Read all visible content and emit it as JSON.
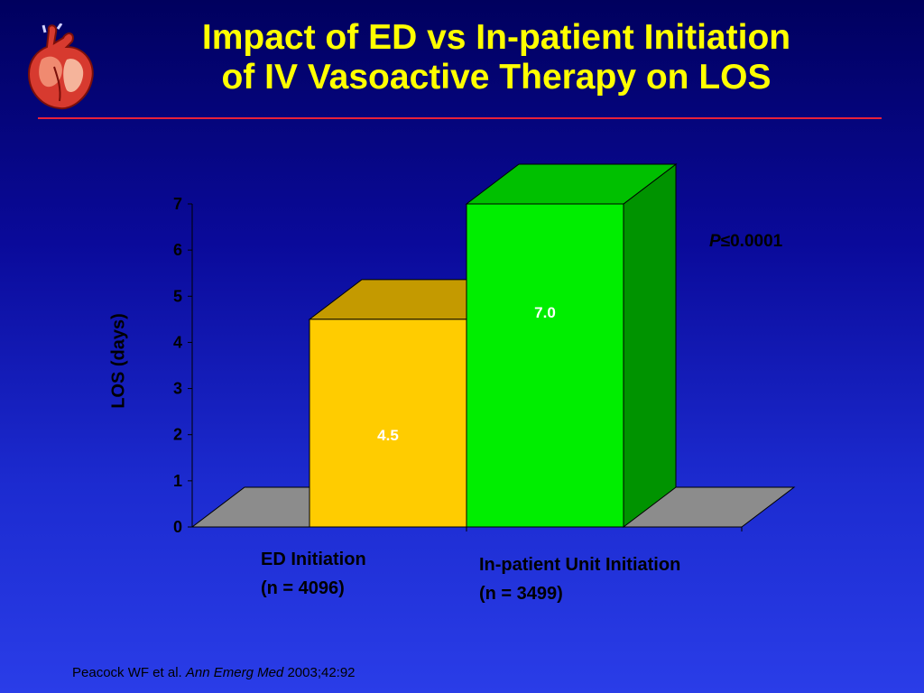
{
  "slide": {
    "title_line1": "Impact of ED vs In-patient Initiation",
    "title_line2": "of IV Vasoactive Therapy on LOS",
    "p_value_symbol": "P",
    "p_value_rest": "≤0.0001",
    "citation": {
      "authors": "Peacock WF et al.",
      "journal": "Ann Emerg Med",
      "year_vol": "2003;42:92"
    },
    "colors": {
      "title": "#ffff00",
      "rule": "#e8213a",
      "background_top": "#00005e",
      "background_bottom": "#2a3de8"
    },
    "icons": [
      "heart-icon"
    ]
  },
  "chart_data": {
    "type": "bar",
    "style": "3d",
    "categories": [
      {
        "line1": "ED Initiation",
        "line2": "(n = 4096)"
      },
      {
        "line1": "In-patient Unit Initiation",
        "line2": "(n = 3499)"
      }
    ],
    "values": [
      4.5,
      7.0
    ],
    "value_labels": [
      "4.5",
      "7.0"
    ],
    "ylabel": "LOS (days)",
    "ylim": [
      0,
      7
    ],
    "yticks": [
      0,
      1,
      2,
      3,
      4,
      5,
      6,
      7
    ],
    "grid": false,
    "bar_colors": [
      {
        "front": "#ffcc00",
        "top": "#c49a00",
        "side": "#a37f00"
      },
      {
        "front": "#00ee00",
        "top": "#00c000",
        "side": "#009300"
      }
    ],
    "floor_color": "#8c8c8c"
  }
}
